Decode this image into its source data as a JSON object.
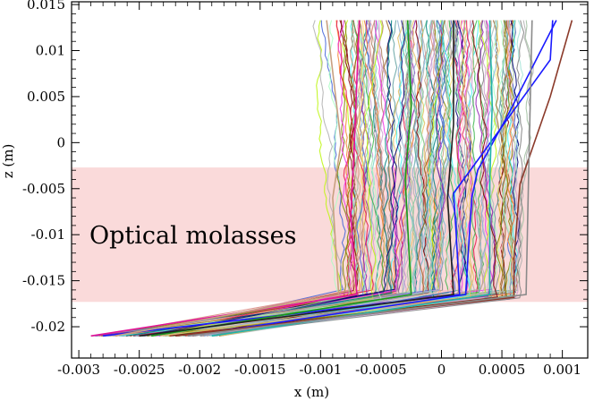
{
  "chart_data": {
    "type": "line",
    "title": "",
    "xlabel": "x (m)",
    "ylabel": "z (m)",
    "xlim": [
      -0.00306,
      0.00121
    ],
    "ylim": [
      -0.0234,
      0.0153
    ],
    "x_ticks": [
      -0.003,
      -0.0025,
      -0.002,
      -0.0015,
      -0.001,
      -0.0005,
      0,
      0.0005,
      0.001
    ],
    "x_tick_labels": [
      "-0.003",
      "-0.0025",
      "-0.002",
      "-0.0015",
      "-0.001",
      "-0.0005",
      "0",
      "0.0005",
      "0.001"
    ],
    "y_ticks": [
      0.015,
      0.01,
      0.005,
      0,
      -0.005,
      -0.01,
      -0.015,
      -0.02
    ],
    "y_tick_labels": [
      "0.015",
      "0.01",
      "0.005",
      "0",
      "-0.005",
      "-0.01",
      "-0.015",
      "-0.02"
    ],
    "region": {
      "label": "Optical molasses",
      "z_range": [
        -0.0173,
        -0.0027
      ],
      "color": "#fadada"
    },
    "trajectory_model": {
      "count": 150,
      "z_start": -0.021,
      "z_turn": -0.0165,
      "z_end": 0.0133,
      "x_start_range": [
        -0.0029,
        -0.0018
      ],
      "x_turn_range": [
        -0.00088,
        0.00068
      ]
    },
    "series": [
      {
        "name": "trajectory-blue-1",
        "color": "#1a1aff",
        "points": [
          [
            -0.0028,
            -0.021
          ],
          [
            0.00015,
            -0.0165
          ],
          [
            0.00012,
            -0.0095
          ],
          [
            0.0001,
            -0.0055
          ],
          [
            0.00035,
            -0.001
          ],
          [
            0.0009,
            0.009
          ],
          [
            0.00092,
            0.0133
          ]
        ]
      },
      {
        "name": "trajectory-blue-2",
        "color": "#1a1aff",
        "points": [
          [
            -0.0021,
            -0.021
          ],
          [
            0.0002,
            -0.0165
          ],
          [
            0.00025,
            -0.006
          ],
          [
            0.0003,
            -0.003
          ],
          [
            0.00055,
            0.003
          ],
          [
            0.00095,
            0.0133
          ]
        ]
      },
      {
        "name": "trajectory-magenta",
        "color": "#e0149a",
        "points": [
          [
            -0.0029,
            -0.021
          ],
          [
            -0.0007,
            -0.0165
          ],
          [
            -0.00075,
            -0.008
          ],
          [
            -0.00072,
            0.0
          ],
          [
            -0.00068,
            0.0133
          ]
        ]
      },
      {
        "name": "trajectory-brown",
        "color": "#8b3a2a",
        "points": [
          [
            -0.0022,
            -0.021
          ],
          [
            0.0006,
            -0.0168
          ],
          [
            0.0006,
            -0.0125
          ],
          [
            0.00065,
            -0.0045
          ],
          [
            0.0009,
            0.005
          ],
          [
            0.00108,
            0.0133
          ]
        ]
      },
      {
        "name": "trajectory-green",
        "color": "#1a9a1a",
        "points": [
          [
            -0.0024,
            -0.021
          ],
          [
            -0.00025,
            -0.0165
          ],
          [
            -0.0003,
            -0.004
          ],
          [
            -0.00025,
            0.004
          ],
          [
            -0.00028,
            0.0133
          ]
        ]
      },
      {
        "name": "trajectory-tan",
        "color": "#c8a080",
        "points": [
          [
            -0.0027,
            -0.021
          ],
          [
            -0.00085,
            -0.0165
          ],
          [
            -0.0009,
            -0.006
          ],
          [
            -0.00083,
            0.0
          ],
          [
            -0.00095,
            0.0133
          ]
        ]
      },
      {
        "name": "trajectory-teal",
        "color": "#20b2aa",
        "points": [
          [
            -0.0019,
            -0.021
          ],
          [
            0.0004,
            -0.0165
          ],
          [
            0.0004,
            -0.004
          ],
          [
            0.00042,
            0.004
          ],
          [
            0.0004,
            0.0133
          ]
        ]
      },
      {
        "name": "trajectory-black",
        "color": "#222222",
        "points": [
          [
            -0.0025,
            -0.021
          ],
          [
            0.0001,
            -0.0165
          ],
          [
            5e-05,
            -0.006
          ],
          [
            0.0001,
            0.002
          ],
          [
            0.0001,
            0.0133
          ]
        ]
      },
      {
        "name": "trajectory-grey",
        "color": "#8a8a8a",
        "points": [
          [
            -0.0021,
            -0.021
          ],
          [
            0.0007,
            -0.0165
          ],
          [
            0.00072,
            -0.004
          ],
          [
            0.00075,
            0.0133
          ]
        ]
      }
    ]
  }
}
